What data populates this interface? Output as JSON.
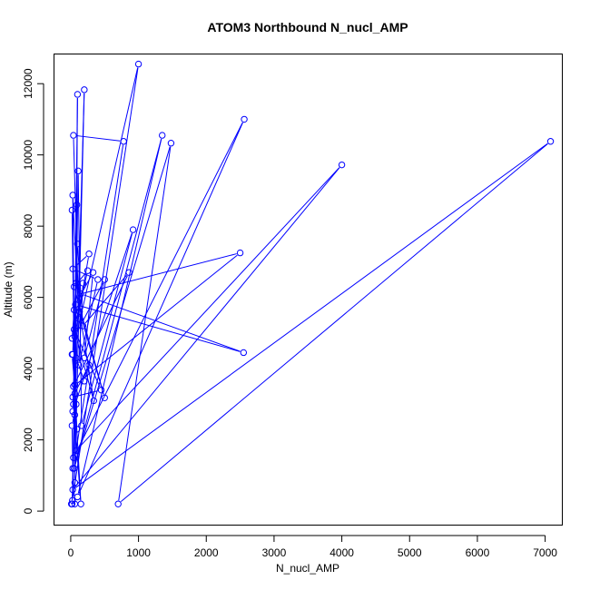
{
  "chart_data": {
    "type": "line",
    "title": "ATOM3 Northbound N_nucl_AMP",
    "xlabel": "N_nucl_AMP",
    "ylabel": "Altitude (m)",
    "xlim": [
      -240,
      7260
    ],
    "ylim": [
      -380,
      12820
    ],
    "x_ticks": [
      0,
      1000,
      2000,
      3000,
      4000,
      5000,
      6000,
      7000
    ],
    "y_ticks": [
      0,
      2000,
      4000,
      6000,
      8000,
      10000,
      12000
    ],
    "x_tick_labels": [
      "0",
      "1000",
      "2000",
      "3000",
      "4000",
      "5000",
      "6000",
      "7000"
    ],
    "y_tick_labels": [
      "0",
      "2000",
      "4000",
      "6000",
      "8000",
      "10000",
      "12000"
    ],
    "grid": false,
    "series": [
      {
        "color": "#0000ff",
        "marker": "open-circle",
        "points": [
          [
            10,
            200
          ],
          [
            60,
            200
          ],
          [
            30,
            1200
          ],
          [
            20,
            2400
          ],
          [
            80,
            3000
          ],
          [
            20,
            4400
          ],
          [
            1000,
            12550
          ],
          [
            25,
            300
          ],
          [
            200,
            11830
          ],
          [
            60,
            800
          ],
          [
            100,
            11700
          ],
          [
            40,
            1500
          ],
          [
            2560,
            11000
          ],
          [
            100,
            400
          ],
          [
            1350,
            10550
          ],
          [
            50,
            1200
          ],
          [
            1480,
            10330
          ],
          [
            700,
            200
          ],
          [
            7080,
            10380
          ],
          [
            30,
            600
          ],
          [
            4000,
            9720
          ],
          [
            80,
            1700
          ],
          [
            780,
            10380
          ],
          [
            40,
            10550
          ],
          [
            120,
            5400
          ],
          [
            30,
            8870
          ],
          [
            60,
            2700
          ],
          [
            20,
            8450
          ],
          [
            90,
            8600
          ],
          [
            60,
            3300
          ],
          [
            110,
            9550
          ],
          [
            160,
            2400
          ],
          [
            920,
            7900
          ],
          [
            30,
            2800
          ],
          [
            100,
            7500
          ],
          [
            180,
            5200
          ],
          [
            860,
            6700
          ],
          [
            40,
            3500
          ],
          [
            2500,
            7250
          ],
          [
            150,
            6100
          ],
          [
            2550,
            4450
          ],
          [
            70,
            5800
          ],
          [
            330,
            6700
          ],
          [
            200,
            4300
          ],
          [
            500,
            6500
          ],
          [
            60,
            4900
          ],
          [
            270,
            7220
          ],
          [
            30,
            6800
          ],
          [
            400,
            6500
          ],
          [
            120,
            4100
          ],
          [
            180,
            6400
          ],
          [
            80,
            6400
          ],
          [
            20,
            4850
          ],
          [
            250,
            6750
          ],
          [
            50,
            6300
          ],
          [
            500,
            3180
          ],
          [
            130,
            5600
          ],
          [
            340,
            3100
          ],
          [
            50,
            5100
          ],
          [
            450,
            3400
          ],
          [
            30,
            3200
          ],
          [
            270,
            4100
          ],
          [
            200,
            3650
          ],
          [
            80,
            4300
          ],
          [
            50,
            5650
          ],
          [
            30,
            4400
          ],
          [
            150,
            200
          ],
          [
            40,
            3000
          ],
          [
            90,
            2300
          ],
          [
            60,
            3550
          ],
          [
            20,
            200
          ]
        ]
      }
    ]
  }
}
